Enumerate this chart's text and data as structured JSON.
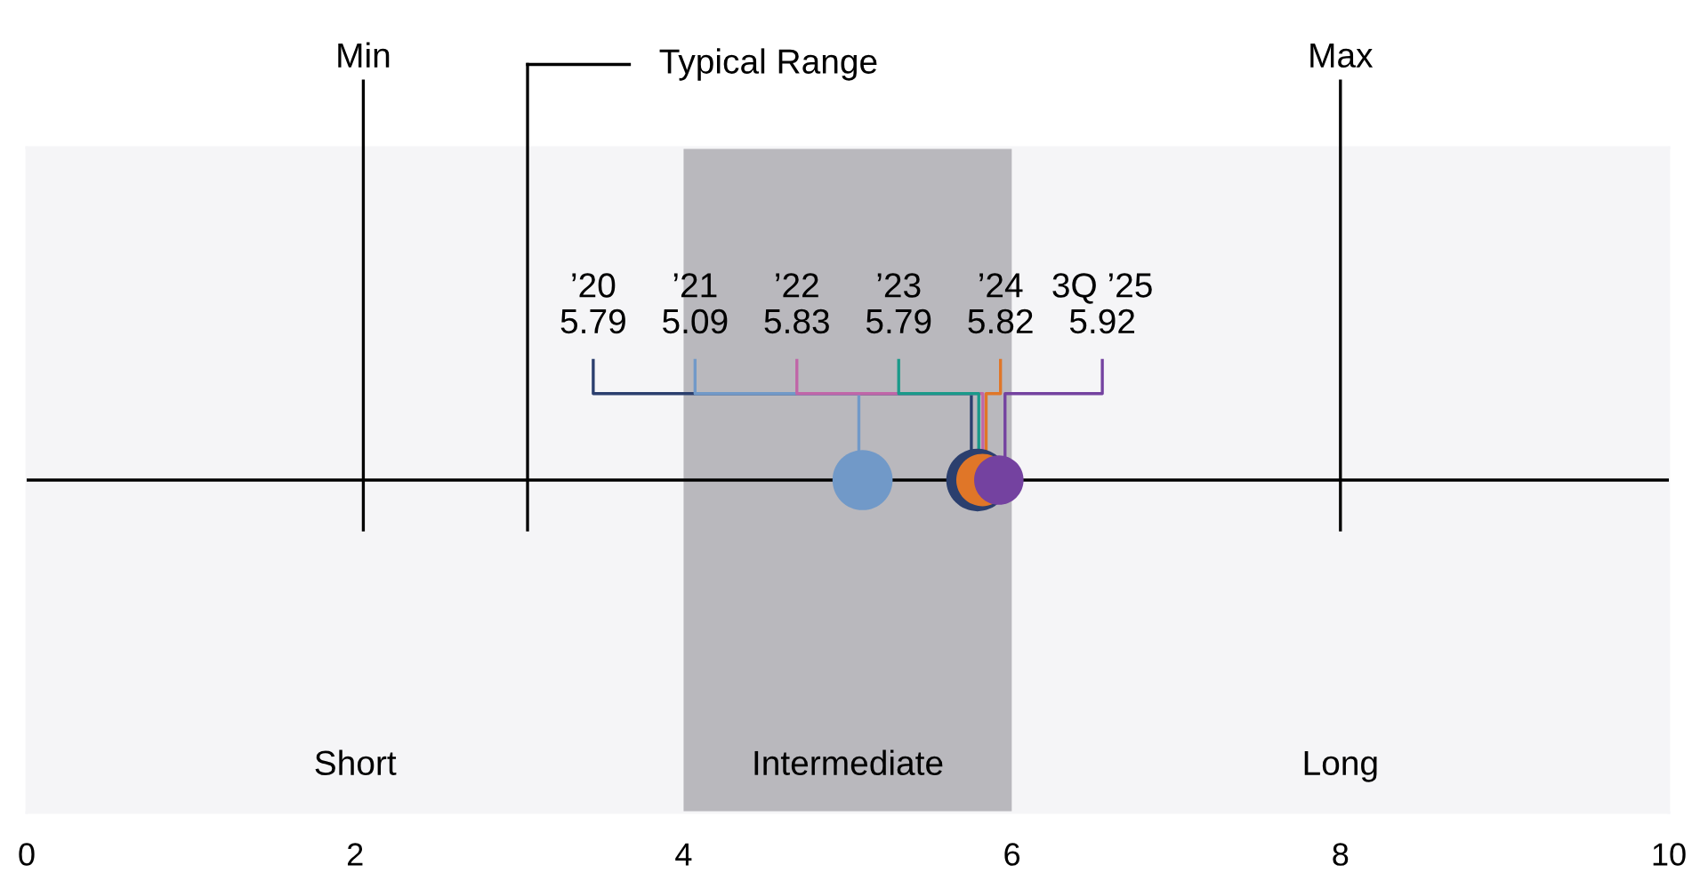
{
  "chart_data": {
    "type": "scatter",
    "orientation": "horizontal",
    "categories": [
      null
    ],
    "marker": "circle",
    "xlim": [
      0,
      10
    ],
    "xticks": [
      0,
      2,
      4,
      6,
      8,
      10
    ],
    "series": [
      {
        "color": "#2b3f6e",
        "values": [
          5.79
        ]
      },
      {
        "color": "#7199c8",
        "values": [
          5.09
        ]
      },
      {
        "color": "#c066a8",
        "values": [
          null
        ]
      },
      {
        "color": "#1a9a8a",
        "values": [
          null
        ]
      },
      {
        "color": "#e07628",
        "values": [
          5.82
        ]
      },
      {
        "color": "#7442a0",
        "values": [
          5.92
        ]
      }
    ],
    "annotations": [
      "’20\n5.79",
      {
        "text": "’21\n5.09",
        "x": 5.09
      },
      {
        "text": "’22\n5.83",
        "x": 5.83
      },
      {
        "text": "’23\n5.79",
        "x": 5.79
      },
      {
        "text": "’24\n5.82",
        "x": 5.82
      },
      "3Q ’25\n5.92"
    ],
    "bands": [
      {
        "axis": "x",
        "from": 0,
        "to": 4,
        "label": "Short",
        "color": "#f5f5f7"
      },
      {
        "axis": "x",
        "from": 4,
        "to": 6,
        "label": "Intermediate",
        "color": "#b9b8bd"
      },
      {
        "axis": "x",
        "from": 6,
        "to": 10,
        "label": "Long",
        "color": "#f5f5f7"
      }
    ],
    "ref_lines": [
      {
        "axis": "x",
        "value": 2.05,
        "label": "Min",
        "color": "#000000"
      },
      {
        "axis": "x",
        "value": 3.05,
        "label": "Typical Range",
        "color": "#000000"
      },
      {
        "axis": "x",
        "value": 8,
        "label": "Max",
        "color": "#000000"
      }
    ]
  }
}
